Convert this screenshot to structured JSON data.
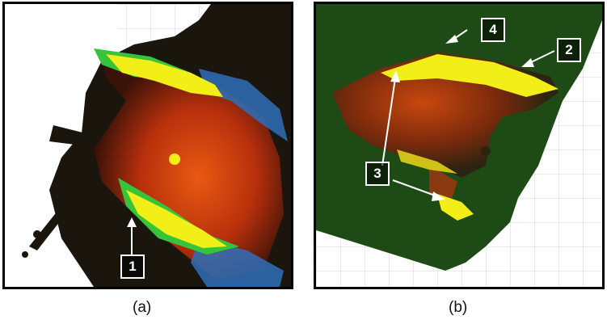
{
  "panels": [
    {
      "caption": "(a)",
      "labels": [
        "1"
      ]
    },
    {
      "caption": "(b)",
      "labels": [
        "4",
        "2",
        "3"
      ]
    }
  ],
  "colors": {
    "border": "#000000",
    "fire_red": "#c8360c",
    "burn_yellow": "#f2ee18",
    "vegetation_green": "#1e4a16",
    "smoke_blue": "#2f6fb8",
    "grid": "#c8c8c8"
  }
}
